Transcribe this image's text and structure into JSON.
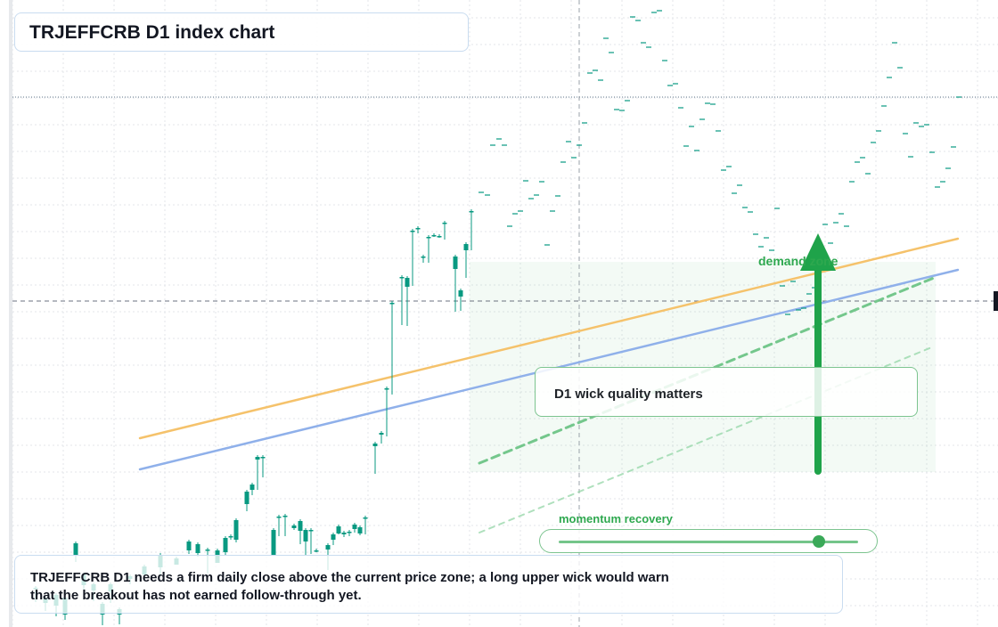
{
  "title": "TRJEFFCRB D1 index chart",
  "note": "D1 wick quality matters",
  "caption": "TRJEFFCRB D1 needs a firm daily close above the current price zone; a long upper wick would warn that the breakout has not earned follow-through yet.",
  "momentum": {
    "label": "momentum recovery",
    "value": 0.87
  },
  "demand_label": "demand zone",
  "colors": {
    "up": "#089981",
    "down": "#f23645",
    "orange_line": "#f5c26b",
    "blue_line": "#8fb0ea",
    "accent": "#2ea84f",
    "grid": "#e3e6ea"
  },
  "chart_data": {
    "type": "candlestick",
    "title": "TRJEFFCRB D1 index chart",
    "xlabel": "",
    "ylabel": "",
    "ylim": [
      0,
      704
    ],
    "candles": [
      [
        40,
        44,
        44,
        28
      ],
      [
        51,
        27,
        32,
        18
      ],
      [
        63,
        24,
        36,
        12
      ],
      [
        73,
        14,
        33,
        8
      ],
      [
        85,
        80,
        94,
        73
      ],
      [
        94,
        47,
        59,
        38
      ],
      [
        105,
        41,
        48,
        29
      ],
      [
        115,
        14,
        26,
        2
      ],
      [
        124,
        40,
        48,
        27
      ],
      [
        134,
        14,
        20,
        3
      ],
      [
        146,
        54,
        57,
        48
      ],
      [
        162,
        59,
        68,
        55
      ],
      [
        180,
        67,
        81,
        58
      ],
      [
        198,
        70,
        77,
        70
      ],
      [
        212,
        86,
        96,
        82
      ],
      [
        222,
        83,
        93,
        79
      ],
      [
        233,
        86,
        87,
        60
      ],
      [
        244,
        72,
        86,
        72
      ],
      [
        253,
        84,
        100,
        80
      ],
      [
        259,
        101,
        102,
        98
      ],
      [
        265,
        98,
        120,
        95
      ],
      [
        277,
        138,
        152,
        130
      ],
      [
        283,
        154,
        160,
        148
      ],
      [
        289,
        188,
        191,
        154
      ],
      [
        295,
        190,
        191,
        168
      ],
      [
        307,
        81,
        109,
        80
      ],
      [
        313,
        123,
        124,
        102
      ],
      [
        320,
        125,
        125,
        102
      ],
      [
        330,
        111,
        114,
        109
      ],
      [
        337,
        108,
        119,
        93
      ],
      [
        343,
        96,
        109,
        81
      ],
      [
        349,
        108,
        109,
        82
      ],
      [
        355,
        85,
        86,
        84
      ],
      [
        368,
        87,
        92,
        64
      ],
      [
        374,
        98,
        104,
        92
      ],
      [
        380,
        105,
        113,
        104
      ],
      [
        386,
        104,
        106,
        101
      ],
      [
        392,
        106,
        107,
        102
      ],
      [
        398,
        110,
        115,
        106
      ],
      [
        404,
        105,
        112,
        103
      ],
      [
        410,
        123,
        123,
        104
      ],
      [
        421,
        203,
        206,
        172
      ],
      [
        428,
        216,
        218,
        206
      ],
      [
        434,
        268,
        268,
        214
      ],
      [
        440,
        364,
        364,
        261
      ],
      [
        451,
        393,
        393,
        339
      ],
      [
        457,
        382,
        392,
        338
      ],
      [
        463,
        444,
        445,
        383
      ],
      [
        469,
        448,
        448,
        442
      ],
      [
        475,
        416,
        416,
        409
      ],
      [
        481,
        438,
        438,
        409
      ],
      [
        487,
        440,
        440,
        438
      ],
      [
        493,
        438,
        439,
        437
      ],
      [
        499,
        454,
        454,
        435
      ],
      [
        511,
        402,
        416,
        354
      ],
      [
        517,
        371,
        378,
        355
      ],
      [
        523,
        423,
        430,
        392
      ],
      [
        529,
        467,
        467,
        423
      ]
    ],
    "dashes": [
      [
        540,
        488
      ],
      [
        547,
        485
      ],
      [
        553,
        541
      ],
      [
        560,
        548
      ],
      [
        566,
        541
      ],
      [
        572,
        450
      ],
      [
        578,
        464
      ],
      [
        584,
        467
      ],
      [
        590,
        501
      ],
      [
        596,
        481
      ],
      [
        602,
        485
      ],
      [
        608,
        500
      ],
      [
        614,
        429
      ],
      [
        620,
        467
      ],
      [
        626,
        484
      ],
      [
        632,
        522
      ],
      [
        638,
        545
      ],
      [
        644,
        527
      ],
      [
        650,
        541
      ],
      [
        656,
        566
      ],
      [
        662,
        622
      ],
      [
        668,
        625
      ],
      [
        674,
        614
      ],
      [
        680,
        661
      ],
      [
        686,
        645
      ],
      [
        692,
        581
      ],
      [
        698,
        580
      ],
      [
        704,
        591
      ],
      [
        710,
        685
      ],
      [
        716,
        681
      ],
      [
        722,
        656
      ],
      [
        728,
        651
      ],
      [
        734,
        690
      ],
      [
        740,
        692
      ],
      [
        746,
        636
      ],
      [
        752,
        608
      ],
      [
        758,
        610
      ],
      [
        764,
        583
      ],
      [
        770,
        540
      ],
      [
        776,
        562
      ],
      [
        782,
        535
      ],
      [
        788,
        570
      ],
      [
        794,
        588
      ],
      [
        800,
        587
      ],
      [
        806,
        557
      ],
      [
        812,
        513
      ],
      [
        818,
        517
      ],
      [
        824,
        487
      ],
      [
        830,
        496
      ],
      [
        836,
        471
      ],
      [
        842,
        466
      ],
      [
        848,
        441
      ],
      [
        854,
        427
      ],
      [
        860,
        437
      ],
      [
        866,
        423
      ],
      [
        872,
        470
      ],
      [
        878,
        383
      ],
      [
        884,
        351
      ],
      [
        890,
        388
      ],
      [
        896,
        356
      ],
      [
        902,
        358
      ],
      [
        908,
        374
      ],
      [
        914,
        381
      ],
      [
        920,
        419
      ],
      [
        926,
        452
      ],
      [
        932,
        431
      ],
      [
        938,
        454
      ],
      [
        944,
        464
      ],
      [
        950,
        450
      ],
      [
        956,
        500
      ],
      [
        962,
        522
      ],
      [
        968,
        527
      ],
      [
        974,
        509
      ],
      [
        980,
        544
      ],
      [
        986,
        557
      ],
      [
        992,
        585
      ],
      [
        998,
        617
      ],
      [
        1004,
        656
      ],
      [
        1010,
        628
      ],
      [
        1016,
        554
      ],
      [
        1022,
        528
      ],
      [
        1028,
        566
      ],
      [
        1034,
        562
      ],
      [
        1040,
        564
      ],
      [
        1046,
        533
      ],
      [
        1052,
        494
      ],
      [
        1058,
        500
      ],
      [
        1064,
        515
      ],
      [
        1070,
        539
      ],
      [
        1076,
        595
      ]
    ],
    "trendlines": [
      {
        "color": "orange",
        "from": [
          157,
          212
        ],
        "to": [
          1075,
          436
        ]
      },
      {
        "color": "blue",
        "from": [
          157,
          177
        ],
        "to": [
          1075,
          401
        ]
      },
      {
        "color": "green-dashed",
        "from": [
          538,
          184
        ],
        "to": [
          1048,
          392
        ]
      },
      {
        "color": "green-faint",
        "from": [
          538,
          106
        ],
        "to": [
          1048,
          315
        ]
      }
    ],
    "horizontal_levels": [
      {
        "style": "dotted",
        "y": 595
      },
      {
        "style": "dashed",
        "y": 366
      }
    ],
    "vertical_marker": {
      "x": 650,
      "style": "dashed"
    },
    "zone": {
      "x": [
        527,
        1050
      ],
      "y": [
        174,
        410
      ],
      "label": "demand zone"
    },
    "arrow": {
      "x": 918,
      "from": 175,
      "to": 442
    }
  }
}
